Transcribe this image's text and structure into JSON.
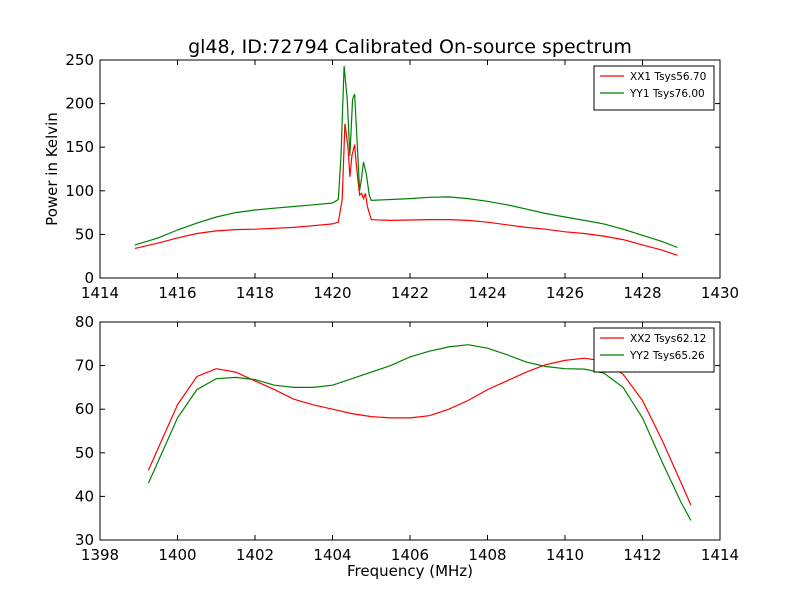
{
  "figure": {
    "title": "gl48, ID:72794 Calibrated On-source spectrum"
  },
  "chart_data": [
    {
      "type": "line",
      "title": "gl48, ID:72794 Calibrated On-source spectrum",
      "xlabel": "",
      "ylabel": "Power in Kelvin",
      "xlim": [
        1414,
        1430
      ],
      "ylim": [
        0,
        250
      ],
      "xticks": [
        "1414",
        "1416",
        "1418",
        "1420",
        "1422",
        "1424",
        "1426",
        "1428",
        "1430"
      ],
      "yticks": [
        "0",
        "50",
        "100",
        "150",
        "200",
        "250"
      ],
      "grid": false,
      "legend_position": "top-right",
      "series": [
        {
          "name": "XX1 Tsys56.70",
          "color": "#ff0000",
          "points": [
            [
              1414.9,
              34
            ],
            [
              1415.5,
              40
            ],
            [
              1416.0,
              46
            ],
            [
              1416.5,
              51
            ],
            [
              1417.0,
              54
            ],
            [
              1417.5,
              55.5
            ],
            [
              1418.0,
              56
            ],
            [
              1418.5,
              57
            ],
            [
              1419.0,
              58
            ],
            [
              1419.5,
              60
            ],
            [
              1420.0,
              62
            ],
            [
              1420.15,
              64
            ],
            [
              1420.25,
              90
            ],
            [
              1420.32,
              177
            ],
            [
              1420.4,
              150
            ],
            [
              1420.45,
              116
            ],
            [
              1420.5,
              140
            ],
            [
              1420.57,
              153
            ],
            [
              1420.62,
              128
            ],
            [
              1420.7,
              95
            ],
            [
              1420.75,
              97
            ],
            [
              1420.8,
              91
            ],
            [
              1420.85,
              97
            ],
            [
              1420.9,
              82
            ],
            [
              1421.0,
              67
            ],
            [
              1421.5,
              66
            ],
            [
              1422.0,
              66.5
            ],
            [
              1422.5,
              67
            ],
            [
              1423.0,
              67
            ],
            [
              1423.5,
              66
            ],
            [
              1424.0,
              64
            ],
            [
              1424.5,
              61
            ],
            [
              1425.0,
              58
            ],
            [
              1425.5,
              56
            ],
            [
              1426.0,
              53
            ],
            [
              1426.5,
              51
            ],
            [
              1427.0,
              48
            ],
            [
              1427.5,
              44
            ],
            [
              1428.0,
              38
            ],
            [
              1428.5,
              32
            ],
            [
              1428.9,
              26
            ]
          ]
        },
        {
          "name": "YY1 Tsys76.00",
          "color": "#008000",
          "points": [
            [
              1414.9,
              38
            ],
            [
              1415.5,
              46
            ],
            [
              1416.0,
              55
            ],
            [
              1416.5,
              63
            ],
            [
              1417.0,
              70
            ],
            [
              1417.5,
              75
            ],
            [
              1418.0,
              78
            ],
            [
              1418.5,
              80
            ],
            [
              1419.0,
              82
            ],
            [
              1419.5,
              84
            ],
            [
              1420.0,
              86
            ],
            [
              1420.15,
              90
            ],
            [
              1420.22,
              140
            ],
            [
              1420.3,
              243
            ],
            [
              1420.38,
              205
            ],
            [
              1420.45,
              140
            ],
            [
              1420.52,
              205
            ],
            [
              1420.57,
              211
            ],
            [
              1420.62,
              170
            ],
            [
              1420.7,
              100
            ],
            [
              1420.75,
              115
            ],
            [
              1420.8,
              133
            ],
            [
              1420.87,
              120
            ],
            [
              1420.95,
              95
            ],
            [
              1421.0,
              89
            ],
            [
              1421.5,
              90
            ],
            [
              1422.0,
              91
            ],
            [
              1422.5,
              92.5
            ],
            [
              1423.0,
              93
            ],
            [
              1423.5,
              91
            ],
            [
              1424.0,
              88
            ],
            [
              1424.5,
              84
            ],
            [
              1425.0,
              79
            ],
            [
              1425.5,
              74
            ],
            [
              1426.0,
              70
            ],
            [
              1426.5,
              66
            ],
            [
              1427.0,
              62
            ],
            [
              1427.5,
              56
            ],
            [
              1428.0,
              49
            ],
            [
              1428.5,
              42
            ],
            [
              1428.9,
              35
            ]
          ]
        }
      ]
    },
    {
      "type": "line",
      "title": "",
      "xlabel": "Frequency (MHz)",
      "ylabel": "",
      "xlim": [
        1398,
        1414
      ],
      "ylim": [
        30,
        80
      ],
      "xticks": [
        "1398",
        "1400",
        "1402",
        "1404",
        "1406",
        "1408",
        "1410",
        "1412",
        "1414"
      ],
      "yticks": [
        "30",
        "40",
        "50",
        "60",
        "70",
        "80"
      ],
      "grid": false,
      "legend_position": "top-right",
      "series": [
        {
          "name": "XX2 Tsys62.12",
          "color": "#ff0000",
          "points": [
            [
              1399.25,
              46
            ],
            [
              1399.5,
              51
            ],
            [
              1400.0,
              61
            ],
            [
              1400.5,
              67.5
            ],
            [
              1401.0,
              69.3
            ],
            [
              1401.5,
              68.5
            ],
            [
              1402.0,
              66.5
            ],
            [
              1402.5,
              64.5
            ],
            [
              1403.0,
              62.3
            ],
            [
              1403.5,
              61
            ],
            [
              1404.0,
              60
            ],
            [
              1404.5,
              59
            ],
            [
              1405.0,
              58.3
            ],
            [
              1405.5,
              58
            ],
            [
              1406.0,
              58
            ],
            [
              1406.5,
              58.5
            ],
            [
              1407.0,
              60
            ],
            [
              1407.5,
              62
            ],
            [
              1408.0,
              64.5
            ],
            [
              1408.5,
              66.5
            ],
            [
              1409.0,
              68.5
            ],
            [
              1409.5,
              70.2
            ],
            [
              1410.0,
              71.2
            ],
            [
              1410.5,
              71.7
            ],
            [
              1411.0,
              71
            ],
            [
              1411.5,
              68
            ],
            [
              1412.0,
              62
            ],
            [
              1412.5,
              53
            ],
            [
              1413.0,
              43
            ],
            [
              1413.25,
              38
            ]
          ]
        },
        {
          "name": "YY2 Tsys65.26",
          "color": "#008000",
          "points": [
            [
              1399.25,
              43
            ],
            [
              1399.5,
              48
            ],
            [
              1400.0,
              58
            ],
            [
              1400.5,
              64.5
            ],
            [
              1401.0,
              67
            ],
            [
              1401.5,
              67.3
            ],
            [
              1402.0,
              66.8
            ],
            [
              1402.5,
              65.5
            ],
            [
              1403.0,
              65
            ],
            [
              1403.5,
              65
            ],
            [
              1404.0,
              65.5
            ],
            [
              1404.5,
              67
            ],
            [
              1405.0,
              68.5
            ],
            [
              1405.5,
              70
            ],
            [
              1406.0,
              72
            ],
            [
              1406.5,
              73.3
            ],
            [
              1407.0,
              74.3
            ],
            [
              1407.5,
              74.8
            ],
            [
              1408.0,
              74
            ],
            [
              1408.5,
              72.5
            ],
            [
              1409.0,
              70.8
            ],
            [
              1409.5,
              69.8
            ],
            [
              1410.0,
              69.3
            ],
            [
              1410.5,
              69.2
            ],
            [
              1411.0,
              68.3
            ],
            [
              1411.5,
              65
            ],
            [
              1412.0,
              58
            ],
            [
              1412.5,
              48
            ],
            [
              1413.0,
              38.5
            ],
            [
              1413.25,
              34.5
            ]
          ]
        }
      ]
    }
  ]
}
